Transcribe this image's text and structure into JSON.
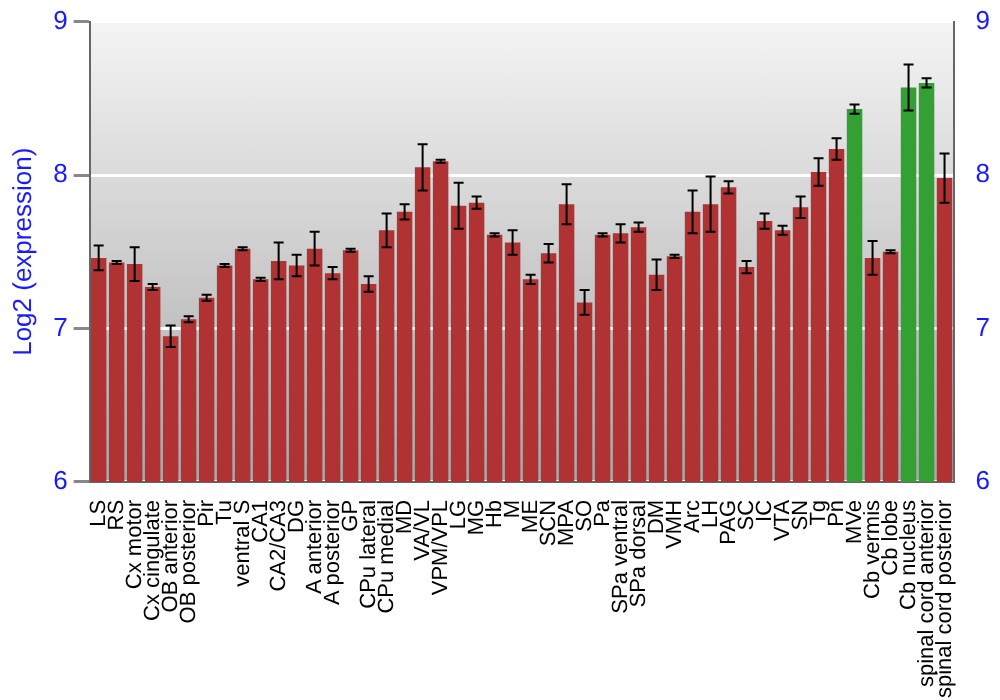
{
  "chart_data": {
    "type": "bar",
    "ylabel": "Log2 (expression)",
    "categories": [
      "LS",
      "RS",
      "Cx motor",
      "Cx cingulate",
      "OB anterior",
      "OB posterior",
      "Pir",
      "Tu",
      "ventral S",
      "CA1",
      "CA2/CA3",
      "DG",
      "A anterior",
      "A posterior",
      "GP",
      "CPu lateral",
      "CPu medial",
      "MD",
      "VA/VL",
      "VPM/VPL",
      "LG",
      "MG",
      "Hb",
      "M",
      "ME",
      "SCN",
      "MPA",
      "SO",
      "Pa",
      "SPa ventral",
      "SPa dorsal",
      "DM",
      "VMH",
      "Arc",
      "LH",
      "PAG",
      "SC",
      "IC",
      "VTA",
      "SN",
      "Tg",
      "Pn",
      "MVe",
      "Cb vermis",
      "Cb lobe",
      "Cb nucleus",
      "spinal cord anterior",
      "spinal cord posterior"
    ],
    "values": [
      7.46,
      7.43,
      7.42,
      7.27,
      6.95,
      7.06,
      7.2,
      7.41,
      7.52,
      7.32,
      7.44,
      7.41,
      7.52,
      7.36,
      7.51,
      7.29,
      7.64,
      7.76,
      8.05,
      8.09,
      7.8,
      7.82,
      7.61,
      7.56,
      7.32,
      7.49,
      7.81,
      7.17,
      7.61,
      7.62,
      7.66,
      7.35,
      7.47,
      7.76,
      7.81,
      7.92,
      7.4,
      7.7,
      7.64,
      7.79,
      8.02,
      8.17,
      8.43,
      7.46,
      7.5,
      8.57,
      8.6,
      7.98
    ],
    "errors": [
      0.08,
      0.01,
      0.11,
      0.02,
      0.07,
      0.02,
      0.02,
      0.01,
      0.01,
      0.01,
      0.12,
      0.07,
      0.11,
      0.04,
      0.01,
      0.05,
      0.11,
      0.05,
      0.15,
      0.01,
      0.15,
      0.04,
      0.01,
      0.08,
      0.03,
      0.06,
      0.13,
      0.08,
      0.01,
      0.06,
      0.03,
      0.1,
      0.01,
      0.14,
      0.18,
      0.04,
      0.04,
      0.05,
      0.03,
      0.07,
      0.09,
      0.07,
      0.03,
      0.11,
      0.01,
      0.15,
      0.03,
      0.16
    ],
    "colors": [
      "#b03232",
      "#b03232",
      "#b03232",
      "#b03232",
      "#b03232",
      "#b03232",
      "#b03232",
      "#b03232",
      "#b03232",
      "#b03232",
      "#b03232",
      "#b03232",
      "#b03232",
      "#b03232",
      "#b03232",
      "#b03232",
      "#b03232",
      "#b03232",
      "#b03232",
      "#b03232",
      "#b03232",
      "#b03232",
      "#b03232",
      "#b03232",
      "#b03232",
      "#b03232",
      "#b03232",
      "#b03232",
      "#b03232",
      "#b03232",
      "#b03232",
      "#b03232",
      "#b03232",
      "#b03232",
      "#b03232",
      "#b03232",
      "#b03232",
      "#b03232",
      "#b03232",
      "#b03232",
      "#b03232",
      "#b03232",
      "#32a032",
      "#b03232",
      "#b03232",
      "#32a032",
      "#32a032",
      "#b03232"
    ],
    "ylim": [
      6,
      9
    ],
    "yticks": [
      6,
      7,
      8,
      9
    ],
    "y2lim": [
      6,
      9
    ],
    "y2ticks": [
      6,
      7,
      8,
      9
    ],
    "grid": "y",
    "legend": false
  }
}
